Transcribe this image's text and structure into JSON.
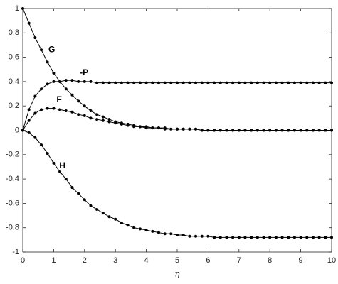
{
  "chart_data": {
    "type": "line",
    "xlabel": "η",
    "x": [
      0,
      0.2,
      0.4,
      0.6,
      0.8,
      1,
      1.2,
      1.4,
      1.6,
      1.8,
      2,
      2.2,
      2.4,
      2.6,
      2.8,
      3,
      3.2,
      3.4,
      3.6,
      3.8,
      4,
      4.2,
      4.4,
      4.6,
      4.8,
      5,
      5.2,
      5.4,
      5.6,
      5.8,
      6,
      6.2,
      6.4,
      6.6,
      6.8,
      7,
      7.2,
      7.4,
      7.6,
      7.8,
      8,
      8.2,
      8.4,
      8.6,
      8.8,
      9,
      9.2,
      9.4,
      9.6,
      9.8,
      10
    ],
    "series": [
      {
        "name": "G",
        "color": "#000000",
        "values": [
          1,
          0.88,
          0.76,
          0.66,
          0.56,
          0.47,
          0.4,
          0.34,
          0.29,
          0.24,
          0.2,
          0.16,
          0.13,
          0.11,
          0.09,
          0.07,
          0.06,
          0.05,
          0.04,
          0.03,
          0.03,
          0.02,
          0.02,
          0.02,
          0.01,
          0.01,
          0.01,
          0.01,
          0.01,
          0,
          0,
          0,
          0,
          0,
          0,
          0,
          0,
          0,
          0,
          0,
          0,
          0,
          0,
          0,
          0,
          0,
          0,
          0,
          0,
          0,
          0
        ]
      },
      {
        "name": "-P",
        "color": "#000000",
        "values": [
          0,
          0.17,
          0.28,
          0.34,
          0.38,
          0.4,
          0.4,
          0.41,
          0.41,
          0.4,
          0.4,
          0.4,
          0.39,
          0.39,
          0.39,
          0.39,
          0.39,
          0.39,
          0.39,
          0.39,
          0.39,
          0.39,
          0.39,
          0.39,
          0.39,
          0.39,
          0.39,
          0.39,
          0.39,
          0.39,
          0.39,
          0.39,
          0.39,
          0.39,
          0.39,
          0.39,
          0.39,
          0.39,
          0.39,
          0.39,
          0.39,
          0.39,
          0.39,
          0.39,
          0.39,
          0.39,
          0.39,
          0.39,
          0.39,
          0.39,
          0.39
        ]
      },
      {
        "name": "F",
        "color": "#000000",
        "values": [
          0,
          0.08,
          0.14,
          0.17,
          0.18,
          0.18,
          0.17,
          0.16,
          0.15,
          0.13,
          0.12,
          0.1,
          0.09,
          0.08,
          0.07,
          0.06,
          0.05,
          0.04,
          0.03,
          0.03,
          0.02,
          0.02,
          0.02,
          0.01,
          0.01,
          0.01,
          0.01,
          0.01,
          0.01,
          0,
          0,
          0,
          0,
          0,
          0,
          0,
          0,
          0,
          0,
          0,
          0,
          0,
          0,
          0,
          0,
          0,
          0,
          0,
          0,
          0,
          0
        ]
      },
      {
        "name": "H",
        "color": "#000000",
        "values": [
          0,
          -0.02,
          -0.06,
          -0.12,
          -0.19,
          -0.27,
          -0.34,
          -0.4,
          -0.47,
          -0.52,
          -0.57,
          -0.62,
          -0.65,
          -0.68,
          -0.71,
          -0.73,
          -0.76,
          -0.78,
          -0.8,
          -0.81,
          -0.82,
          -0.83,
          -0.84,
          -0.85,
          -0.85,
          -0.86,
          -0.86,
          -0.87,
          -0.87,
          -0.87,
          -0.87,
          -0.88,
          -0.88,
          -0.88,
          -0.88,
          -0.88,
          -0.88,
          -0.88,
          -0.88,
          -0.88,
          -0.88,
          -0.88,
          -0.88,
          -0.88,
          -0.88,
          -0.88,
          -0.88,
          -0.88,
          -0.88,
          -0.88,
          -0.88
        ]
      }
    ],
    "xlim": [
      0,
      10
    ],
    "xticks": [
      0,
      1,
      2,
      3,
      4,
      5,
      6,
      7,
      8,
      9,
      10
    ],
    "ylim": [
      -1,
      1
    ],
    "yticks": [
      -1,
      -0.8,
      -0.6,
      -0.4,
      -0.2,
      0,
      0.2,
      0.4,
      0.6,
      0.8,
      1
    ],
    "grid": false
  }
}
